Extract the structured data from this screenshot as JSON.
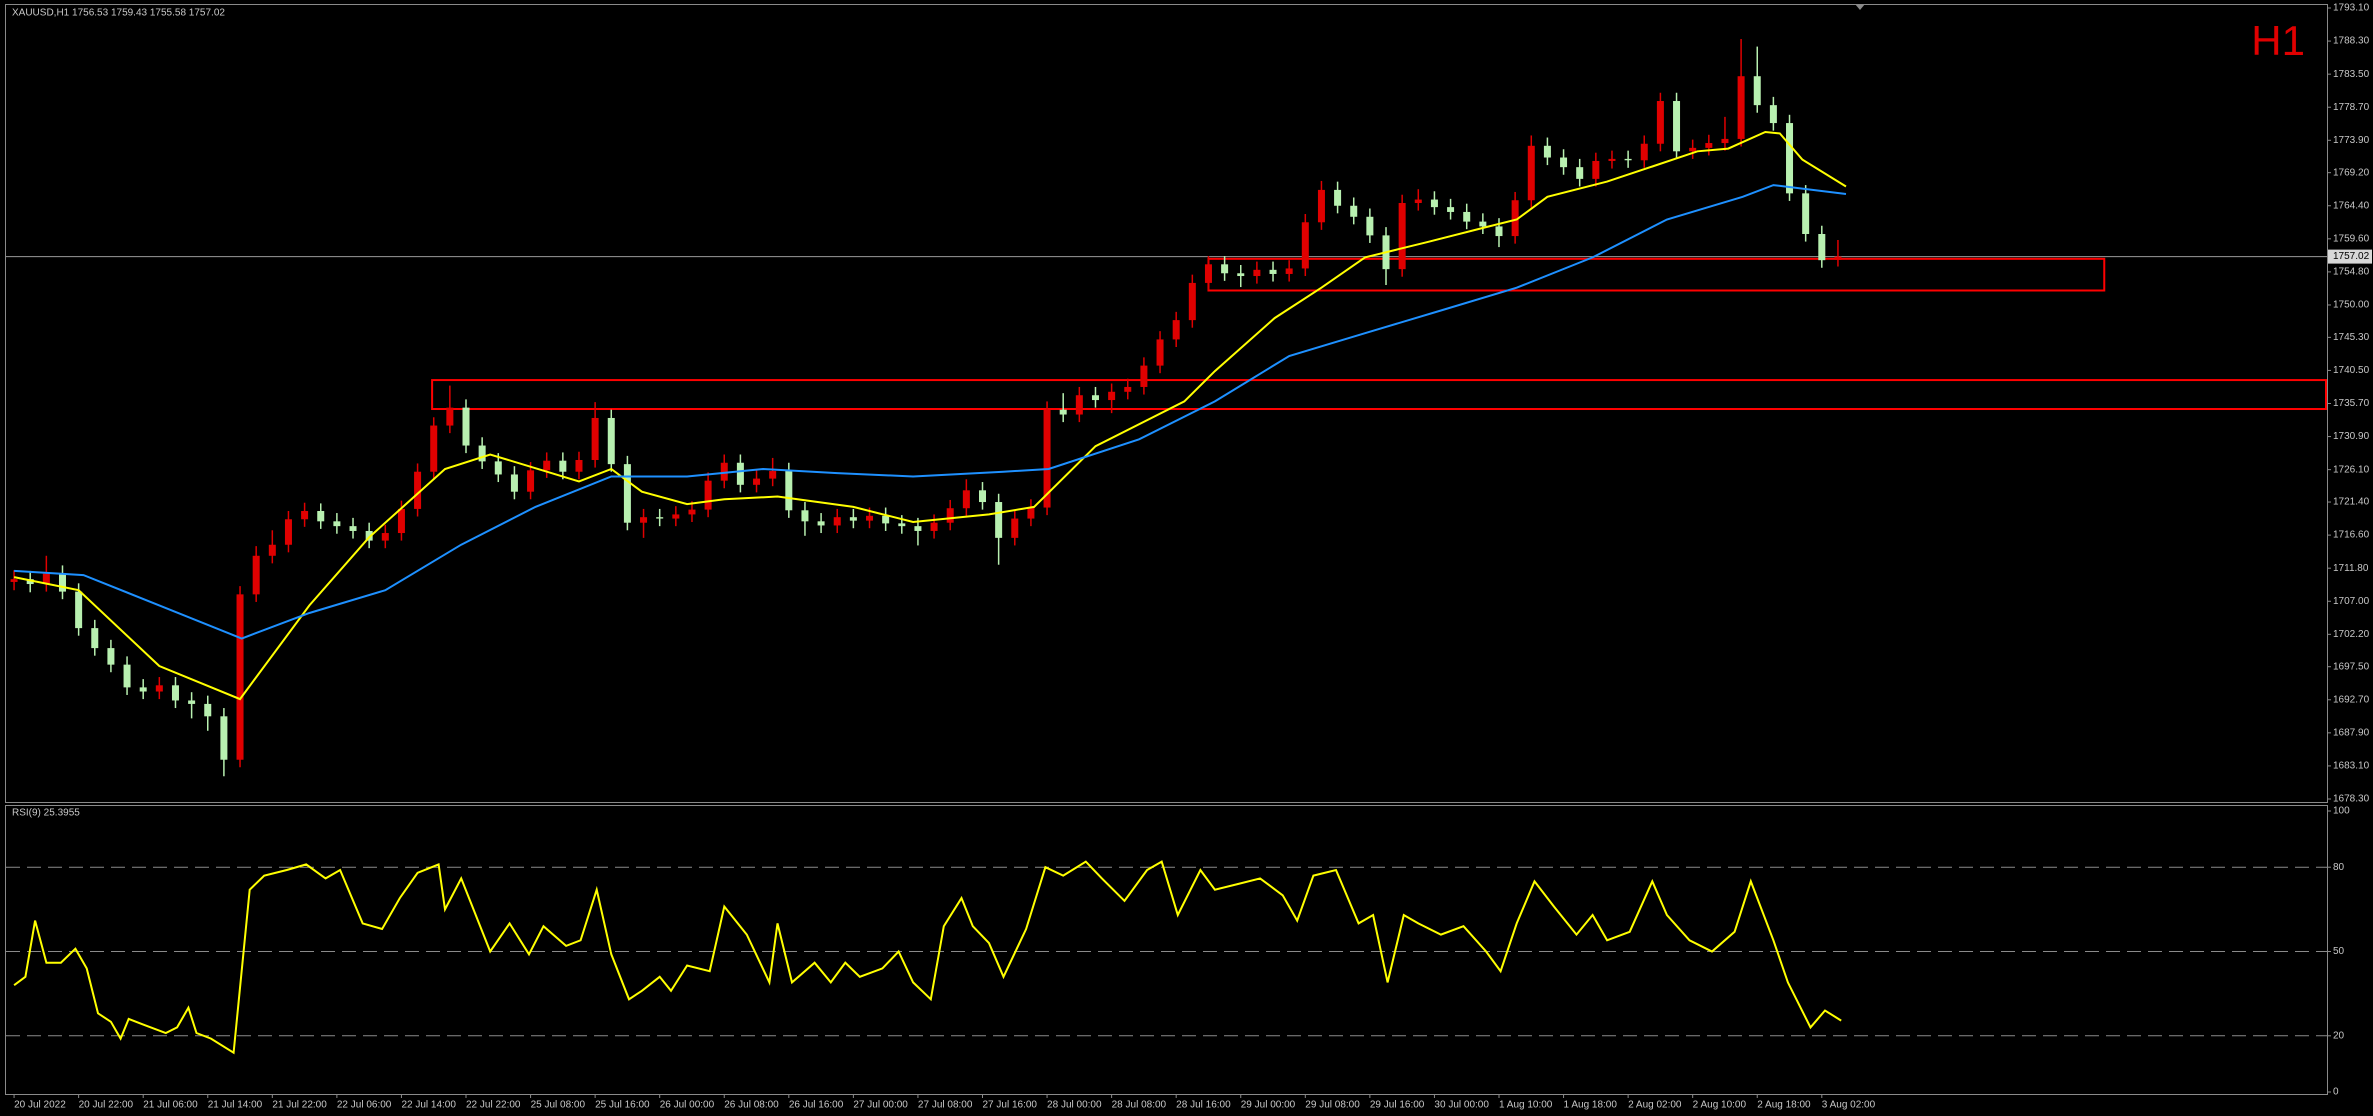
{
  "chart_data": [
    {
      "type": "candlestick",
      "title": "XAUUSD,H1  1756.53 1759.43 1755.58 1757.02",
      "timeframe_label": "H1",
      "categories": [
        "20 Jul 2022",
        null,
        null,
        null,
        "20 Jul 22:00",
        null,
        null,
        null,
        "21 Jul 06:00",
        null,
        null,
        null,
        "21 Jul 14:00",
        null,
        null,
        null,
        "21 Jul 22:00",
        null,
        null,
        null,
        "22 Jul 06:00",
        null,
        null,
        null,
        "22 Jul 14:00",
        null,
        null,
        null,
        "22 Jul 22:00",
        null,
        null,
        null,
        "25 Jul 08:00",
        null,
        null,
        null,
        "25 Jul 16:00",
        null,
        null,
        null,
        "26 Jul 00:00",
        null,
        null,
        null,
        "26 Jul 08:00",
        null,
        null,
        null,
        "26 Jul 16:00",
        null,
        null,
        null,
        "27 Jul 00:00",
        null,
        null,
        null,
        "27 Jul 08:00",
        null,
        null,
        null,
        "27 Jul 16:00",
        null,
        null,
        null,
        "28 Jul 00:00",
        null,
        null,
        null,
        "28 Jul 08:00",
        null,
        null,
        null,
        "28 Jul 16:00",
        null,
        null,
        null,
        "29 Jul 00:00",
        null,
        null,
        null,
        "29 Jul 08:00",
        null,
        null,
        null,
        "29 Jul 16:00",
        null,
        null,
        null,
        "30 Jul 00:00",
        null,
        null,
        null,
        "1 Aug 10:00",
        null,
        null,
        null,
        "1 Aug 18:00",
        null,
        null,
        null,
        "2 Aug 02:00",
        null,
        null,
        null,
        "2 Aug 10:00",
        null,
        null,
        null,
        "2 Aug 18:00",
        null,
        null,
        null,
        "3 Aug 02:00",
        null
      ],
      "open": [
        1709.8,
        1710.2,
        1709.5,
        1711.0,
        1708.4,
        1703.1,
        1700.2,
        1697.8,
        1694.5,
        1693.9,
        1694.8,
        1692.6,
        1692.1,
        1690.3,
        1684.0,
        1708.0,
        1713.6,
        1715.2,
        1718.9,
        1720.1,
        1718.6,
        1717.9,
        1717.2,
        1715.8,
        1716.9,
        1720.4,
        1725.8,
        1732.5,
        1735.1,
        1729.6,
        1727.3,
        1725.4,
        1722.9,
        1726.0,
        1727.4,
        1725.8,
        1727.5,
        1733.6,
        1726.9,
        1718.4,
        1719.2,
        1719.0,
        1719.6,
        1720.3,
        1724.5,
        1727.1,
        1723.9,
        1724.8,
        1725.9,
        1720.2,
        1718.6,
        1718.0,
        1719.2,
        1718.7,
        1719.4,
        1718.3,
        1717.9,
        1717.2,
        1718.4,
        1720.5,
        1723.1,
        1721.4,
        1716.2,
        1719.0,
        1720.6,
        1734.8,
        1734.1,
        1736.9,
        1736.2,
        1737.4,
        1738.1,
        1741.2,
        1745.0,
        1747.8,
        1753.2,
        1755.9,
        1754.6,
        1754.2,
        1755.1,
        1754.5,
        1755.3,
        1762.0,
        1766.7,
        1764.4,
        1762.8,
        1760.1,
        1755.2,
        1764.8,
        1765.3,
        1764.2,
        1763.5,
        1762.1,
        1761.4,
        1760.0,
        1765.2,
        1773.1,
        1771.4,
        1770.0,
        1768.3,
        1770.9,
        1771.2,
        1771.0,
        1773.4,
        1779.6,
        1772.3,
        1772.8,
        1773.5,
        1774.1,
        1783.2,
        1779.0,
        1776.4,
        1766.2,
        1760.3,
        1756.53
      ],
      "high": [
        1711.5,
        1711.4,
        1713.6,
        1712.2,
        1709.6,
        1704.3,
        1701.4,
        1699.0,
        1695.7,
        1696.0,
        1696.0,
        1693.8,
        1693.3,
        1691.5,
        1709.2,
        1715.0,
        1717.3,
        1720.1,
        1721.3,
        1721.2,
        1719.8,
        1719.1,
        1718.4,
        1718.1,
        1721.6,
        1727.0,
        1733.7,
        1738.3,
        1736.3,
        1730.8,
        1728.5,
        1726.6,
        1727.2,
        1728.6,
        1728.6,
        1728.7,
        1735.9,
        1734.8,
        1728.1,
        1720.4,
        1720.4,
        1720.8,
        1721.5,
        1725.7,
        1728.3,
        1728.3,
        1726.0,
        1727.8,
        1727.1,
        1721.4,
        1719.8,
        1720.4,
        1720.4,
        1720.6,
        1720.6,
        1719.5,
        1719.1,
        1719.6,
        1721.7,
        1724.7,
        1724.3,
        1722.6,
        1720.2,
        1721.8,
        1736.0,
        1737.2,
        1738.1,
        1738.1,
        1738.6,
        1739.3,
        1742.4,
        1746.2,
        1749.0,
        1754.4,
        1757.1,
        1757.1,
        1755.8,
        1756.3,
        1756.3,
        1756.5,
        1763.2,
        1768.0,
        1767.9,
        1765.6,
        1764.0,
        1761.3,
        1766.0,
        1766.8,
        1766.5,
        1765.4,
        1764.7,
        1763.3,
        1762.6,
        1766.4,
        1774.6,
        1774.3,
        1772.6,
        1771.2,
        1772.1,
        1772.4,
        1772.4,
        1774.6,
        1780.8,
        1780.8,
        1774.0,
        1774.7,
        1777.3,
        1788.6,
        1787.5,
        1780.2,
        1777.6,
        1767.4,
        1761.5,
        1759.43
      ],
      "low": [
        1708.6,
        1708.3,
        1708.4,
        1707.3,
        1702.0,
        1699.1,
        1696.7,
        1693.4,
        1692.8,
        1692.8,
        1691.5,
        1690.0,
        1688.2,
        1681.6,
        1682.9,
        1706.9,
        1712.5,
        1714.1,
        1717.8,
        1717.5,
        1716.8,
        1716.1,
        1714.7,
        1714.7,
        1715.8,
        1719.3,
        1724.7,
        1731.4,
        1728.5,
        1726.2,
        1724.3,
        1721.8,
        1721.8,
        1724.9,
        1724.7,
        1724.7,
        1726.4,
        1725.8,
        1717.3,
        1716.2,
        1717.9,
        1717.9,
        1718.5,
        1719.2,
        1723.4,
        1722.8,
        1722.8,
        1723.7,
        1719.1,
        1716.5,
        1716.9,
        1716.9,
        1717.6,
        1717.6,
        1717.2,
        1716.8,
        1715.1,
        1716.1,
        1717.3,
        1719.4,
        1720.3,
        1712.3,
        1715.1,
        1717.9,
        1719.5,
        1733.0,
        1733.0,
        1735.1,
        1734.3,
        1736.3,
        1737.0,
        1740.1,
        1743.9,
        1746.7,
        1752.1,
        1753.5,
        1752.6,
        1753.1,
        1753.4,
        1753.4,
        1754.2,
        1760.9,
        1763.3,
        1761.7,
        1759.0,
        1752.9,
        1754.1,
        1763.7,
        1763.1,
        1762.4,
        1761.0,
        1760.3,
        1758.4,
        1758.9,
        1764.1,
        1770.3,
        1768.9,
        1767.2,
        1767.2,
        1769.8,
        1769.9,
        1769.9,
        1772.3,
        1771.2,
        1771.2,
        1771.7,
        1772.4,
        1773.0,
        1777.9,
        1775.3,
        1765.1,
        1759.2,
        1755.4,
        1755.58
      ],
      "close": [
        1710.2,
        1709.5,
        1711.0,
        1708.4,
        1703.1,
        1700.2,
        1697.8,
        1694.5,
        1693.9,
        1694.8,
        1692.6,
        1692.1,
        1690.3,
        1684.0,
        1708.0,
        1713.6,
        1715.2,
        1718.9,
        1720.1,
        1718.6,
        1717.9,
        1717.2,
        1715.8,
        1716.9,
        1720.4,
        1725.8,
        1732.5,
        1735.1,
        1729.6,
        1727.3,
        1725.4,
        1722.9,
        1726.0,
        1727.4,
        1725.8,
        1727.5,
        1733.6,
        1726.9,
        1718.4,
        1719.2,
        1719.0,
        1719.6,
        1720.3,
        1724.5,
        1727.1,
        1723.9,
        1724.8,
        1725.9,
        1720.2,
        1718.6,
        1718.0,
        1719.2,
        1718.7,
        1719.4,
        1718.3,
        1717.9,
        1717.2,
        1718.4,
        1720.5,
        1723.1,
        1721.4,
        1716.2,
        1719.0,
        1720.6,
        1734.8,
        1734.1,
        1736.9,
        1736.2,
        1737.4,
        1738.1,
        1741.2,
        1745.0,
        1747.8,
        1753.2,
        1755.9,
        1754.6,
        1754.2,
        1755.1,
        1754.5,
        1755.3,
        1762.0,
        1766.7,
        1764.4,
        1762.8,
        1760.1,
        1755.2,
        1764.8,
        1765.3,
        1764.2,
        1763.5,
        1762.1,
        1761.4,
        1760.0,
        1765.2,
        1773.1,
        1771.4,
        1770.0,
        1768.3,
        1770.9,
        1771.2,
        1771.0,
        1773.4,
        1779.6,
        1772.3,
        1772.8,
        1773.5,
        1774.1,
        1783.2,
        1779.0,
        1776.4,
        1766.2,
        1760.3,
        1756.5,
        1757.02
      ],
      "up_color": "#e00000",
      "down_color": "#b8f0b0",
      "moving_averages": [
        {
          "color": "#ffff00",
          "x": [
            0,
            4,
            9,
            14,
            18.3,
            22,
            26.7,
            29.5,
            35,
            37,
            38.9,
            41.7,
            44,
            47.3,
            52,
            55.7,
            60.4,
            63.2,
            67,
            72.5,
            74.4,
            78.1,
            81,
            83.7,
            87.5,
            91.2,
            93.1,
            95,
            98.7,
            101.5,
            104.3,
            106.2,
            108.5,
            109.4,
            110.8,
            113.5
          ],
          "values": [
            1710.5,
            1708.6,
            1697.6,
            1692.8,
            1706.4,
            1716.3,
            1726.2,
            1728.3,
            1724.4,
            1726.2,
            1722.9,
            1721.1,
            1721.8,
            1722.2,
            1720.7,
            1718.5,
            1719.6,
            1720.7,
            1729.5,
            1736.0,
            1740.4,
            1748.1,
            1752.5,
            1756.9,
            1759.1,
            1761.3,
            1762.4,
            1765.7,
            1767.9,
            1770.1,
            1772.3,
            1772.7,
            1775.1,
            1774.9,
            1771.1,
            1767.2
          ]
        },
        {
          "color": "#1e90ff",
          "x": [
            0,
            4.3,
            9,
            14.1,
            18.3,
            23,
            27.7,
            32.3,
            37,
            41.7,
            46.4,
            51,
            55.7,
            61.3,
            64.1,
            69.7,
            74.4,
            79,
            83.7,
            88.4,
            93.1,
            97.8,
            102.4,
            107.1,
            109,
            113.5
          ],
          "values": [
            1711.4,
            1710.8,
            1706.4,
            1701.6,
            1705.3,
            1708.6,
            1715.2,
            1720.7,
            1725.1,
            1725.1,
            1726.2,
            1725.6,
            1725.1,
            1725.8,
            1726.2,
            1730.5,
            1736.0,
            1742.6,
            1745.9,
            1749.2,
            1752.5,
            1756.9,
            1762.4,
            1765.7,
            1767.4,
            1766.1
          ]
        }
      ],
      "zones": [
        {
          "low": 1752.1,
          "high": 1756.7,
          "from": 74,
          "to": 129.5,
          "color": "#ff0000"
        },
        {
          "low": 1734.9,
          "high": 1739.1,
          "from": 25.9,
          "to": 143.3,
          "color": "#ff0000"
        }
      ],
      "last_price": 1757.02,
      "xlim": [
        -0.5,
        143.3
      ],
      "ylim": [
        1678.3,
        1793.1
      ],
      "yticks": [
        {
          "value": 1793.1,
          "label": "1793.10"
        },
        {
          "value": 1788.3,
          "label": "1788.30"
        },
        {
          "value": 1783.5,
          "label": "1783.50"
        },
        {
          "value": 1778.7,
          "label": "1778.70"
        },
        {
          "value": 1773.9,
          "label": "1773.90"
        },
        {
          "value": 1769.2,
          "label": "1769.20"
        },
        {
          "value": 1764.4,
          "label": "1764.40"
        },
        {
          "value": 1759.6,
          "label": "1759.60"
        },
        {
          "value": 1754.8,
          "label": "1754.80"
        },
        {
          "value": 1750.0,
          "label": "1750.00"
        },
        {
          "value": 1745.3,
          "label": "1745.30"
        },
        {
          "value": 1740.5,
          "label": "1740.50"
        },
        {
          "value": 1735.7,
          "label": "1735.70"
        },
        {
          "value": 1730.9,
          "label": "1730.90"
        },
        {
          "value": 1726.1,
          "label": "1726.10"
        },
        {
          "value": 1721.4,
          "label": "1721.40"
        },
        {
          "value": 1716.6,
          "label": "1716.60"
        },
        {
          "value": 1711.8,
          "label": "1711.80"
        },
        {
          "value": 1707.0,
          "label": "1707.00"
        },
        {
          "value": 1702.2,
          "label": "1702.20"
        },
        {
          "value": 1697.5,
          "label": "1697.50"
        },
        {
          "value": 1692.7,
          "label": "1692.70"
        },
        {
          "value": 1687.9,
          "label": "1687.90"
        },
        {
          "value": 1683.1,
          "label": "1683.10"
        },
        {
          "value": 1678.3,
          "label": "1678.30"
        }
      ]
    },
    {
      "type": "line",
      "title": "RSI(9) 25.3955",
      "color": "#ffff00",
      "x": [
        0,
        0.7,
        1.3,
        2.0,
        2.9,
        3.8,
        4.5,
        5.2,
        6.0,
        6.6,
        7.1,
        8.0,
        9.4,
        10.1,
        10.8,
        11.3,
        12.2,
        13.6,
        14.6,
        15.5,
        16.9,
        18.1,
        19.3,
        20.2,
        21.6,
        22.8,
        23.9,
        25.0,
        26.3,
        26.7,
        27.7,
        29.5,
        30.7,
        31.9,
        32.8,
        34.2,
        35.1,
        36.1,
        37.0,
        38.1,
        38.9,
        40.0,
        40.7,
        41.7,
        43.1,
        44.0,
        45.4,
        46.8,
        47.3,
        48.2,
        49.6,
        50.6,
        51.5,
        52.4,
        53.8,
        54.8,
        55.7,
        56.8,
        57.6,
        58.7,
        59.4,
        60.4,
        61.3,
        62.7,
        63.9,
        65.0,
        66.4,
        67.4,
        68.8,
        70.2,
        71.1,
        72.1,
        73.5,
        74.4,
        75.8,
        77.2,
        78.6,
        79.5,
        80.5,
        81.9,
        83.3,
        84.2,
        85.1,
        86.1,
        87.0,
        88.4,
        89.8,
        91.2,
        92.1,
        93.1,
        94.2,
        95.4,
        96.8,
        97.8,
        98.7,
        100.1,
        101.5,
        102.4,
        103.8,
        105.2,
        106.6,
        107.6,
        109.0,
        109.9,
        111.3,
        112.2,
        113.2
      ],
      "values": [
        38,
        41,
        61,
        46,
        46,
        51,
        44,
        28,
        25,
        19,
        26,
        24,
        21,
        23,
        30,
        21,
        19,
        14,
        72,
        77,
        79,
        81,
        76,
        79,
        60,
        58,
        69,
        78,
        81,
        65,
        76,
        50,
        60,
        49,
        59,
        52,
        54,
        72,
        49,
        33,
        36,
        41,
        36,
        45,
        43,
        66,
        56,
        39,
        60,
        39,
        46,
        39,
        46,
        41,
        44,
        50,
        39,
        33,
        59,
        69,
        59,
        53,
        41,
        58,
        80,
        77,
        82,
        76,
        68,
        79,
        82,
        63,
        79,
        72,
        74,
        76,
        70,
        61,
        77,
        79,
        60,
        63,
        39,
        63,
        60,
        56,
        59,
        50,
        43,
        60,
        75,
        66,
        56,
        63,
        54,
        57,
        75,
        63,
        54,
        50,
        57,
        75,
        54,
        39,
        23,
        29,
        25.4
      ],
      "xlim": [
        -0.5,
        143.3
      ],
      "ylim": [
        0,
        100
      ],
      "yticks": [
        0,
        20,
        50,
        80,
        100
      ]
    }
  ]
}
